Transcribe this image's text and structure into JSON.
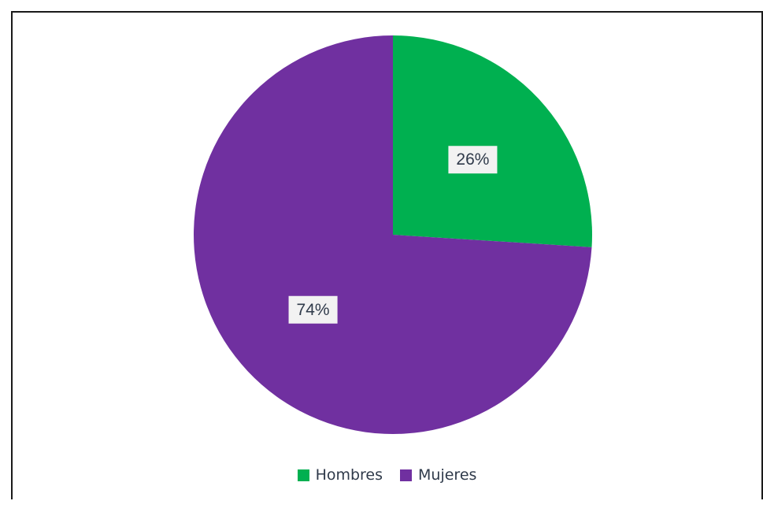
{
  "chart_data": {
    "type": "pie",
    "categories": [
      "Hombres",
      "Mujeres"
    ],
    "values": [
      26,
      74
    ],
    "labels": [
      "26%",
      "74%"
    ],
    "colors": [
      "#00b050",
      "#7030a0"
    ],
    "start_angle_deg": 0,
    "direction": "clockwise",
    "legend_position": "bottom"
  }
}
